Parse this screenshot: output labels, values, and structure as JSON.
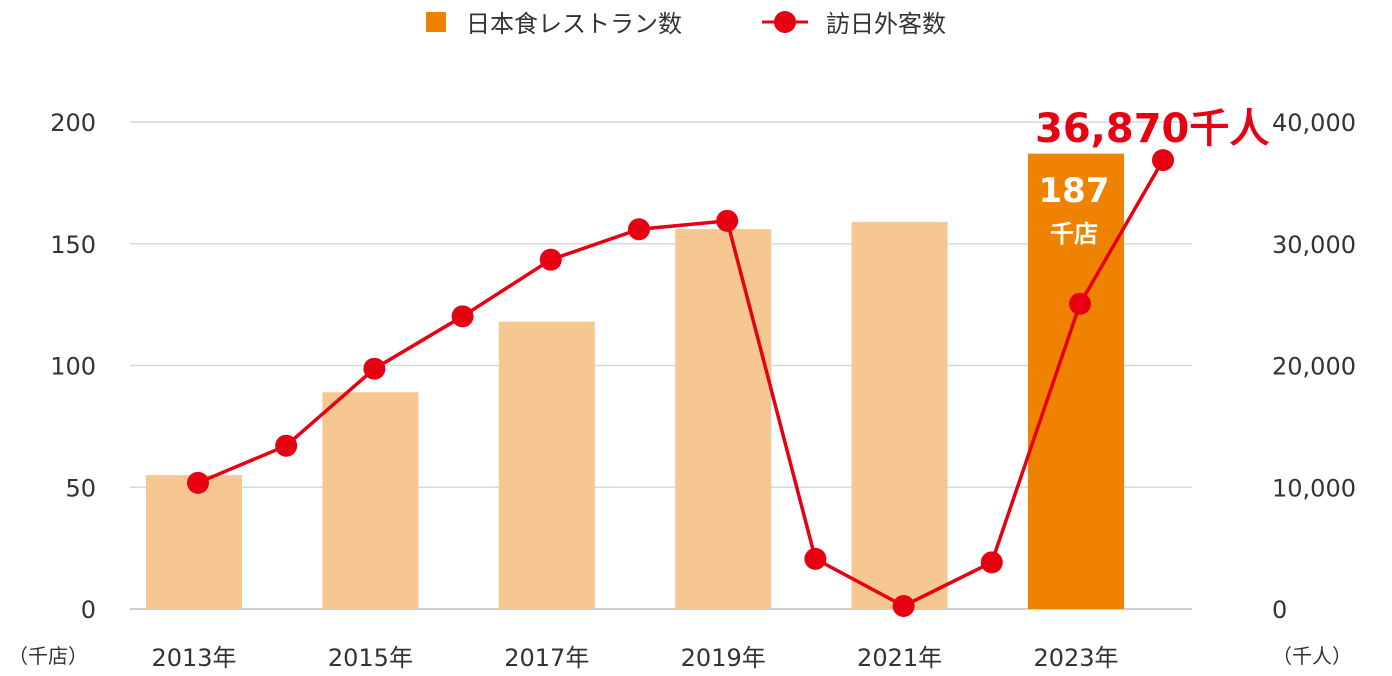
{
  "chart_data": {
    "type": "bar",
    "legend": {
      "position": "top-center",
      "items": [
        {
          "label": "日本食レストラン数",
          "marker": "square",
          "color": "#EF8200"
        },
        {
          "label": "訪日外客数",
          "marker": "line-dot",
          "color": "#E60012"
        }
      ]
    },
    "y_left": {
      "unit": "（千店）",
      "ticks": [
        "0",
        "50",
        "100",
        "150",
        "200"
      ],
      "ylim": [
        0,
        200
      ]
    },
    "y_right": {
      "unit": "（千人）",
      "ticks": [
        "0",
        "10,000",
        "20,000",
        "30,000",
        "40,000"
      ],
      "ylim": [
        0,
        40000
      ]
    },
    "x_labels": [
      "2013年",
      "2015年",
      "2017年",
      "2019年",
      "2021年",
      "2023年"
    ],
    "grid": true,
    "bars": {
      "name": "日本食レストラン数",
      "years": [
        2013,
        2015,
        2017,
        2019,
        2021,
        2023
      ],
      "values": [
        55,
        89,
        118,
        156,
        159,
        187
      ],
      "color": "#F7C791",
      "highlight_color": "#EF8200",
      "highlight_index": 5,
      "highlight_label": {
        "value": "187",
        "unit": "千店"
      }
    },
    "line": {
      "name": "訪日外客数",
      "years": [
        2013,
        2014,
        2015,
        2016,
        2017,
        2018,
        2019,
        2020,
        2021,
        2022,
        2023
      ],
      "values": [
        10364,
        13413,
        19737,
        24040,
        28691,
        31192,
        31882,
        4116,
        246,
        3832,
        25066
      ],
      "color": "#E60012"
    },
    "annotation": {
      "text": "36,870千人",
      "color": "#E60012"
    }
  }
}
